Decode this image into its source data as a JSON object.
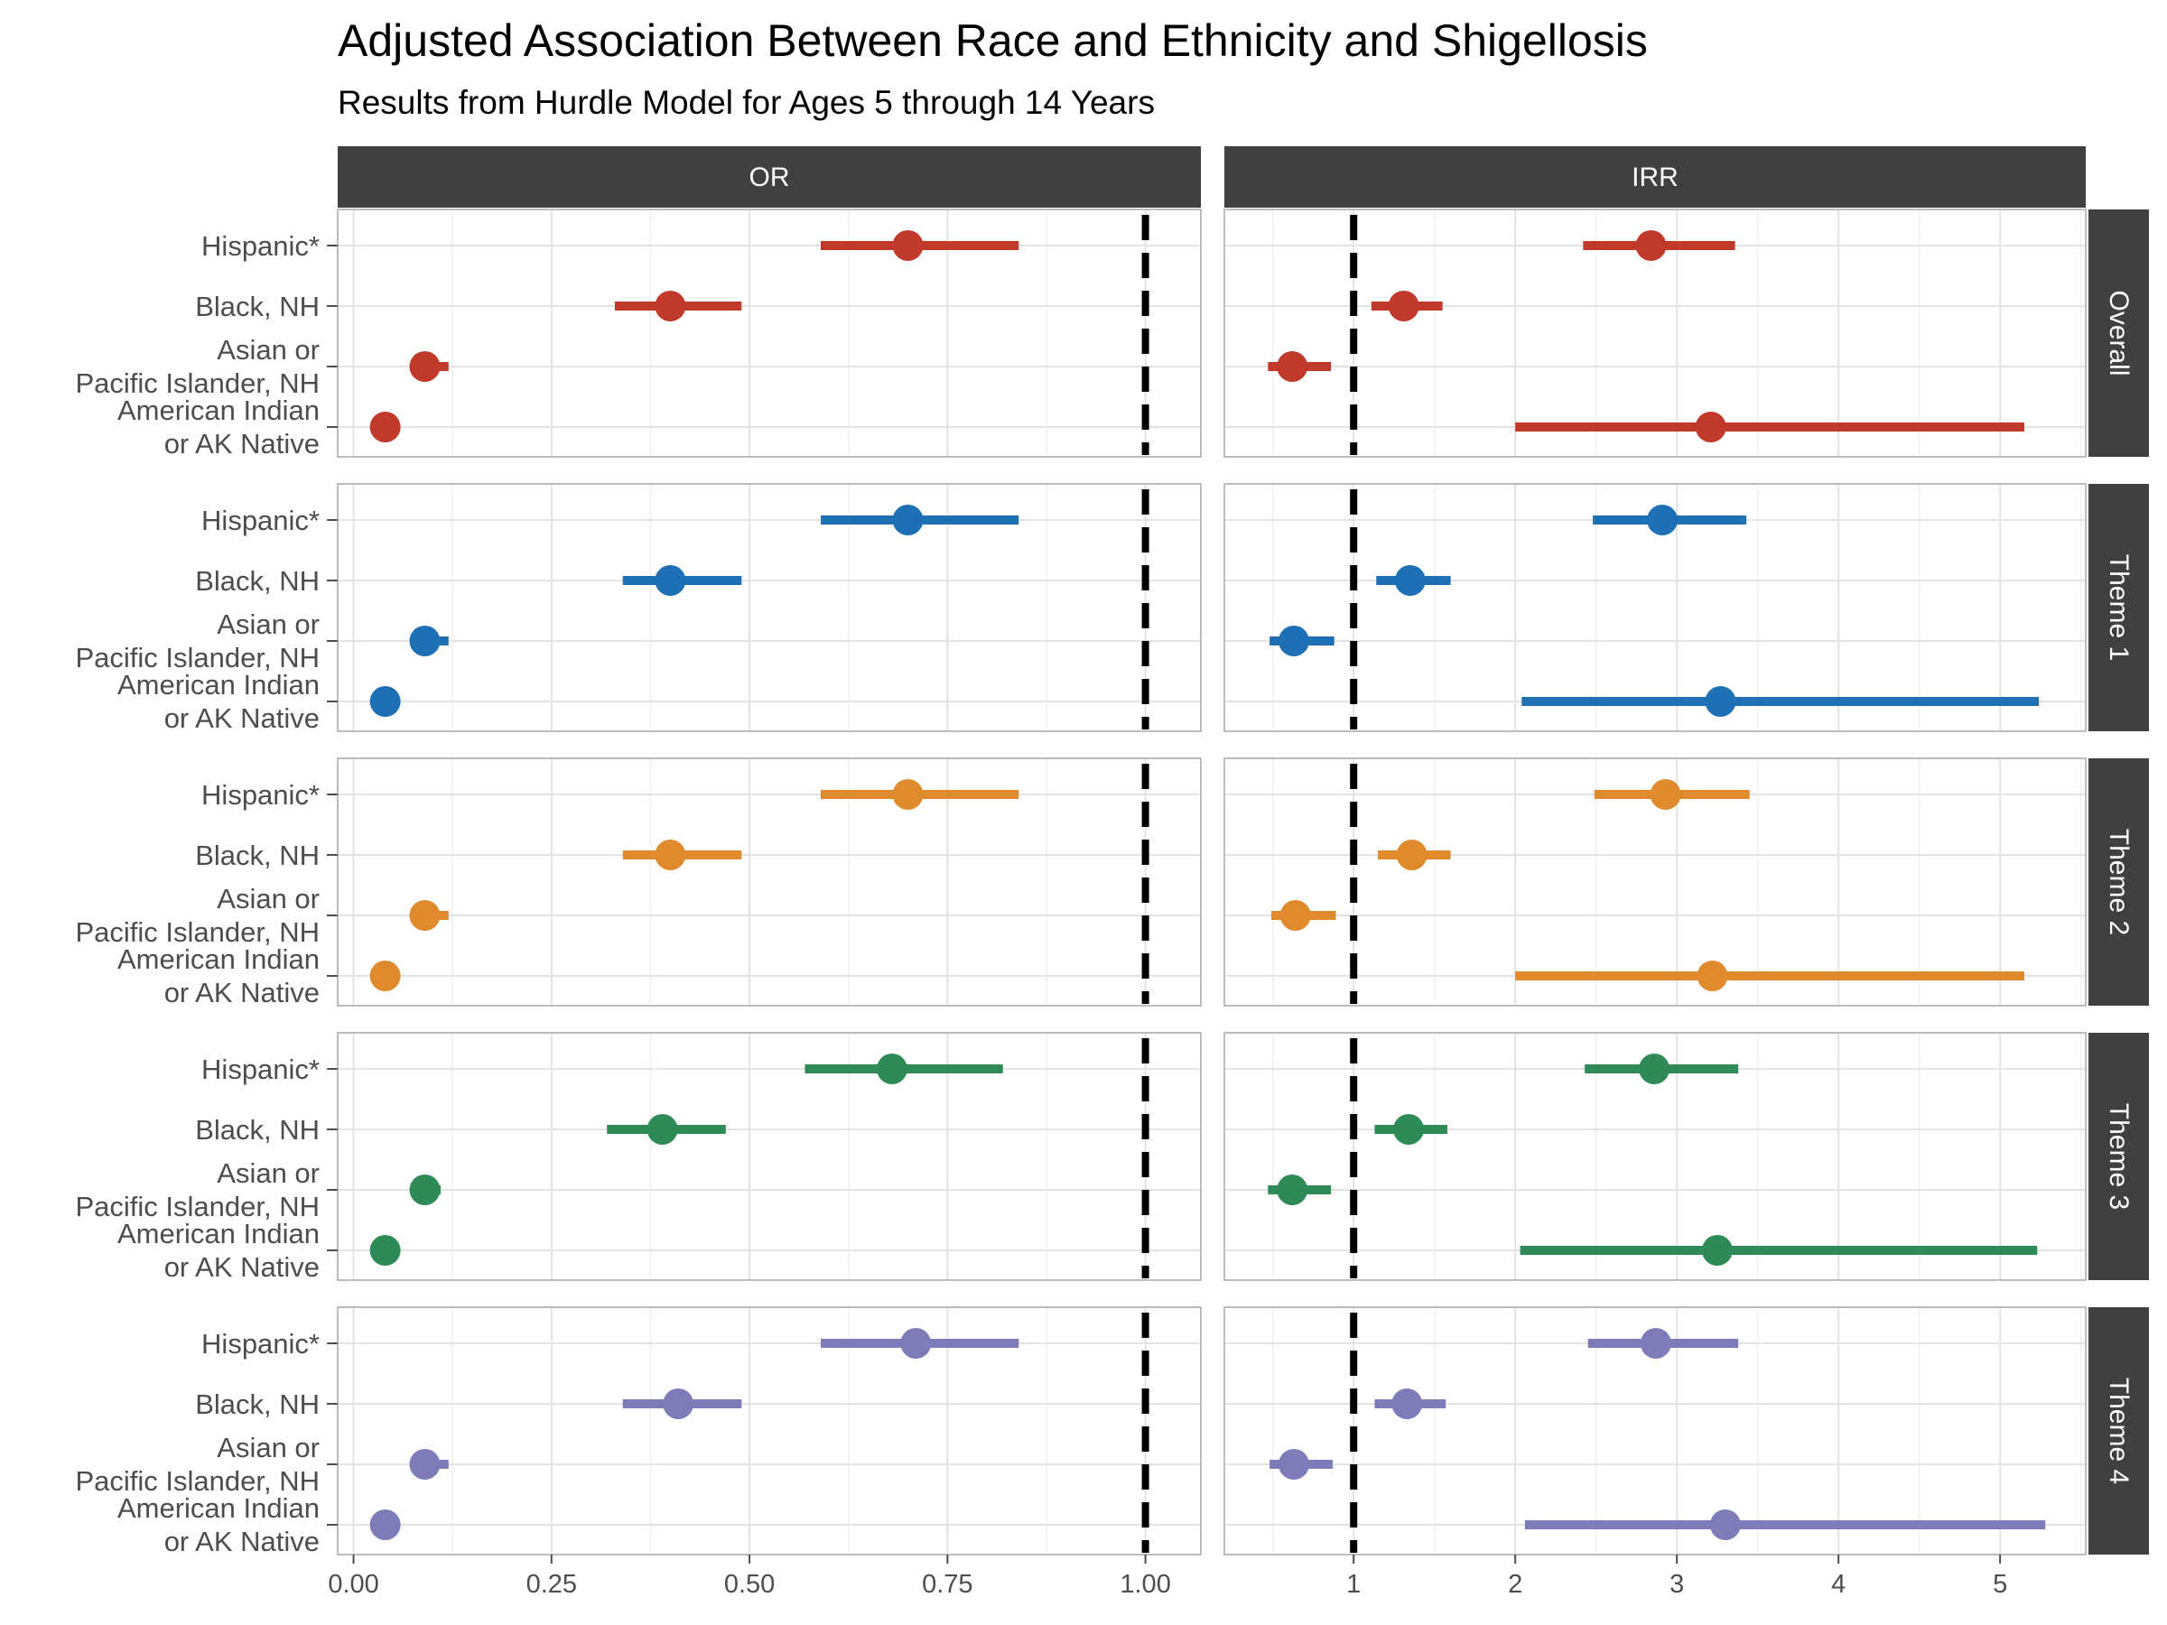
{
  "title": "Adjusted Association Between Race and Ethnicity and Shigellosis",
  "subtitle": "Results from Hurdle Model for Ages 5 through 14 Years",
  "chart_data": {
    "type": "forest",
    "columns": [
      {
        "name": "OR",
        "xlim": [
          -0.02,
          1.07
        ],
        "ticks": [
          0,
          0.25,
          0.5,
          0.75,
          1
        ],
        "tick_labels": [
          "0.00",
          "0.25",
          "0.50",
          "0.75",
          "1.00"
        ],
        "reference": 1
      },
      {
        "name": "IRR",
        "xlim": [
          0.2,
          5.53
        ],
        "ticks": [
          1,
          2,
          3,
          4,
          5
        ],
        "tick_labels": [
          "1",
          "2",
          "3",
          "4",
          "5"
        ],
        "reference": 1
      }
    ],
    "categories": [
      [
        "Hispanic*"
      ],
      [
        "Black, NH"
      ],
      [
        "Asian or",
        "Pacific Islander, NH"
      ],
      [
        "American Indian",
        "or AK Native"
      ]
    ],
    "rows": [
      {
        "name": "Overall",
        "color": "#C0392B",
        "OR": [
          {
            "est": 0.7,
            "lo": 0.59,
            "hi": 0.84
          },
          {
            "est": 0.4,
            "lo": 0.33,
            "hi": 0.49
          },
          {
            "est": 0.09,
            "lo": 0.08,
            "hi": 0.12
          },
          {
            "est": 0.04,
            "lo": 0.04,
            "hi": 0.04
          }
        ],
        "IRR": [
          {
            "est": 2.84,
            "lo": 2.42,
            "hi": 3.36
          },
          {
            "est": 1.31,
            "lo": 1.11,
            "hi": 1.55
          },
          {
            "est": 0.62,
            "lo": 0.47,
            "hi": 0.86
          },
          {
            "est": 3.21,
            "lo": 2.0,
            "hi": 5.15
          }
        ]
      },
      {
        "name": "Theme 1",
        "color": "#1F6FB5",
        "OR": [
          {
            "est": 0.7,
            "lo": 0.59,
            "hi": 0.84
          },
          {
            "est": 0.4,
            "lo": 0.34,
            "hi": 0.49
          },
          {
            "est": 0.09,
            "lo": 0.08,
            "hi": 0.12
          },
          {
            "est": 0.04,
            "lo": 0.04,
            "hi": 0.04
          }
        ],
        "IRR": [
          {
            "est": 2.91,
            "lo": 2.48,
            "hi": 3.43
          },
          {
            "est": 1.35,
            "lo": 1.14,
            "hi": 1.6
          },
          {
            "est": 0.63,
            "lo": 0.48,
            "hi": 0.88
          },
          {
            "est": 3.27,
            "lo": 2.04,
            "hi": 5.24
          }
        ]
      },
      {
        "name": "Theme 2",
        "color": "#E08A2E",
        "OR": [
          {
            "est": 0.7,
            "lo": 0.59,
            "hi": 0.84
          },
          {
            "est": 0.4,
            "lo": 0.34,
            "hi": 0.49
          },
          {
            "est": 0.09,
            "lo": 0.08,
            "hi": 0.12
          },
          {
            "est": 0.04,
            "lo": 0.04,
            "hi": 0.04
          }
        ],
        "IRR": [
          {
            "est": 2.93,
            "lo": 2.49,
            "hi": 3.45
          },
          {
            "est": 1.36,
            "lo": 1.15,
            "hi": 1.6
          },
          {
            "est": 0.64,
            "lo": 0.49,
            "hi": 0.89
          },
          {
            "est": 3.22,
            "lo": 2.0,
            "hi": 5.15
          }
        ]
      },
      {
        "name": "Theme 3",
        "color": "#2E8B57",
        "OR": [
          {
            "est": 0.68,
            "lo": 0.57,
            "hi": 0.82
          },
          {
            "est": 0.39,
            "lo": 0.32,
            "hi": 0.47
          },
          {
            "est": 0.09,
            "lo": 0.08,
            "hi": 0.11
          },
          {
            "est": 0.04,
            "lo": 0.04,
            "hi": 0.04
          }
        ],
        "IRR": [
          {
            "est": 2.86,
            "lo": 2.43,
            "hi": 3.38
          },
          {
            "est": 1.34,
            "lo": 1.13,
            "hi": 1.58
          },
          {
            "est": 0.62,
            "lo": 0.47,
            "hi": 0.86
          },
          {
            "est": 3.25,
            "lo": 2.03,
            "hi": 5.23
          }
        ]
      },
      {
        "name": "Theme 4",
        "color": "#7E7BB9",
        "OR": [
          {
            "est": 0.71,
            "lo": 0.59,
            "hi": 0.84
          },
          {
            "est": 0.41,
            "lo": 0.34,
            "hi": 0.49
          },
          {
            "est": 0.09,
            "lo": 0.08,
            "hi": 0.12
          },
          {
            "est": 0.04,
            "lo": 0.04,
            "hi": 0.04
          }
        ],
        "IRR": [
          {
            "est": 2.87,
            "lo": 2.45,
            "hi": 3.38
          },
          {
            "est": 1.33,
            "lo": 1.13,
            "hi": 1.57
          },
          {
            "est": 0.63,
            "lo": 0.48,
            "hi": 0.87
          },
          {
            "est": 3.3,
            "lo": 2.06,
            "hi": 5.28
          }
        ]
      }
    ],
    "grid": true,
    "legend": "none"
  }
}
